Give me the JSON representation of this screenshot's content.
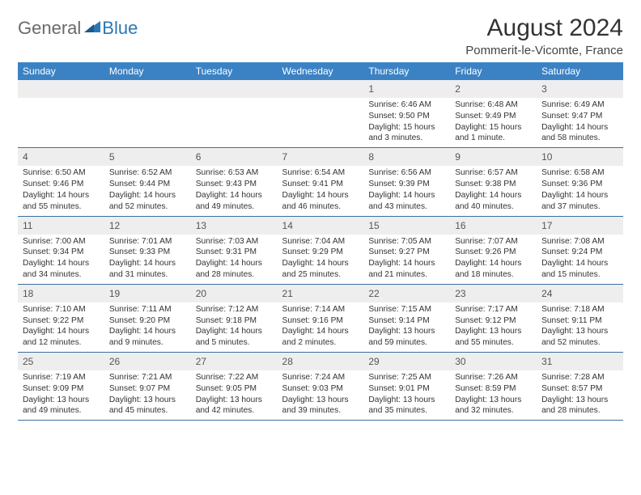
{
  "brand": {
    "part1": "General",
    "part2": "Blue"
  },
  "title": "August 2024",
  "location": "Pommerit-le-Vicomte, France",
  "colors": {
    "header_bg": "#3b82c4",
    "header_text": "#ffffff",
    "daynum_bg": "#eeeeee",
    "border": "#3b6fa0",
    "brand_gray": "#6a6a6a",
    "brand_blue": "#2978b5"
  },
  "weekdays": [
    "Sunday",
    "Monday",
    "Tuesday",
    "Wednesday",
    "Thursday",
    "Friday",
    "Saturday"
  ],
  "weeks": [
    [
      null,
      null,
      null,
      null,
      {
        "n": "1",
        "sr": "6:46 AM",
        "ss": "9:50 PM",
        "dl": "15 hours and 3 minutes."
      },
      {
        "n": "2",
        "sr": "6:48 AM",
        "ss": "9:49 PM",
        "dl": "15 hours and 1 minute."
      },
      {
        "n": "3",
        "sr": "6:49 AM",
        "ss": "9:47 PM",
        "dl": "14 hours and 58 minutes."
      }
    ],
    [
      {
        "n": "4",
        "sr": "6:50 AM",
        "ss": "9:46 PM",
        "dl": "14 hours and 55 minutes."
      },
      {
        "n": "5",
        "sr": "6:52 AM",
        "ss": "9:44 PM",
        "dl": "14 hours and 52 minutes."
      },
      {
        "n": "6",
        "sr": "6:53 AM",
        "ss": "9:43 PM",
        "dl": "14 hours and 49 minutes."
      },
      {
        "n": "7",
        "sr": "6:54 AM",
        "ss": "9:41 PM",
        "dl": "14 hours and 46 minutes."
      },
      {
        "n": "8",
        "sr": "6:56 AM",
        "ss": "9:39 PM",
        "dl": "14 hours and 43 minutes."
      },
      {
        "n": "9",
        "sr": "6:57 AM",
        "ss": "9:38 PM",
        "dl": "14 hours and 40 minutes."
      },
      {
        "n": "10",
        "sr": "6:58 AM",
        "ss": "9:36 PM",
        "dl": "14 hours and 37 minutes."
      }
    ],
    [
      {
        "n": "11",
        "sr": "7:00 AM",
        "ss": "9:34 PM",
        "dl": "14 hours and 34 minutes."
      },
      {
        "n": "12",
        "sr": "7:01 AM",
        "ss": "9:33 PM",
        "dl": "14 hours and 31 minutes."
      },
      {
        "n": "13",
        "sr": "7:03 AM",
        "ss": "9:31 PM",
        "dl": "14 hours and 28 minutes."
      },
      {
        "n": "14",
        "sr": "7:04 AM",
        "ss": "9:29 PM",
        "dl": "14 hours and 25 minutes."
      },
      {
        "n": "15",
        "sr": "7:05 AM",
        "ss": "9:27 PM",
        "dl": "14 hours and 21 minutes."
      },
      {
        "n": "16",
        "sr": "7:07 AM",
        "ss": "9:26 PM",
        "dl": "14 hours and 18 minutes."
      },
      {
        "n": "17",
        "sr": "7:08 AM",
        "ss": "9:24 PM",
        "dl": "14 hours and 15 minutes."
      }
    ],
    [
      {
        "n": "18",
        "sr": "7:10 AM",
        "ss": "9:22 PM",
        "dl": "14 hours and 12 minutes."
      },
      {
        "n": "19",
        "sr": "7:11 AM",
        "ss": "9:20 PM",
        "dl": "14 hours and 9 minutes."
      },
      {
        "n": "20",
        "sr": "7:12 AM",
        "ss": "9:18 PM",
        "dl": "14 hours and 5 minutes."
      },
      {
        "n": "21",
        "sr": "7:14 AM",
        "ss": "9:16 PM",
        "dl": "14 hours and 2 minutes."
      },
      {
        "n": "22",
        "sr": "7:15 AM",
        "ss": "9:14 PM",
        "dl": "13 hours and 59 minutes."
      },
      {
        "n": "23",
        "sr": "7:17 AM",
        "ss": "9:12 PM",
        "dl": "13 hours and 55 minutes."
      },
      {
        "n": "24",
        "sr": "7:18 AM",
        "ss": "9:11 PM",
        "dl": "13 hours and 52 minutes."
      }
    ],
    [
      {
        "n": "25",
        "sr": "7:19 AM",
        "ss": "9:09 PM",
        "dl": "13 hours and 49 minutes."
      },
      {
        "n": "26",
        "sr": "7:21 AM",
        "ss": "9:07 PM",
        "dl": "13 hours and 45 minutes."
      },
      {
        "n": "27",
        "sr": "7:22 AM",
        "ss": "9:05 PM",
        "dl": "13 hours and 42 minutes."
      },
      {
        "n": "28",
        "sr": "7:24 AM",
        "ss": "9:03 PM",
        "dl": "13 hours and 39 minutes."
      },
      {
        "n": "29",
        "sr": "7:25 AM",
        "ss": "9:01 PM",
        "dl": "13 hours and 35 minutes."
      },
      {
        "n": "30",
        "sr": "7:26 AM",
        "ss": "8:59 PM",
        "dl": "13 hours and 32 minutes."
      },
      {
        "n": "31",
        "sr": "7:28 AM",
        "ss": "8:57 PM",
        "dl": "13 hours and 28 minutes."
      }
    ]
  ],
  "labels": {
    "sunrise": "Sunrise:",
    "sunset": "Sunset:",
    "daylight": "Daylight:"
  }
}
